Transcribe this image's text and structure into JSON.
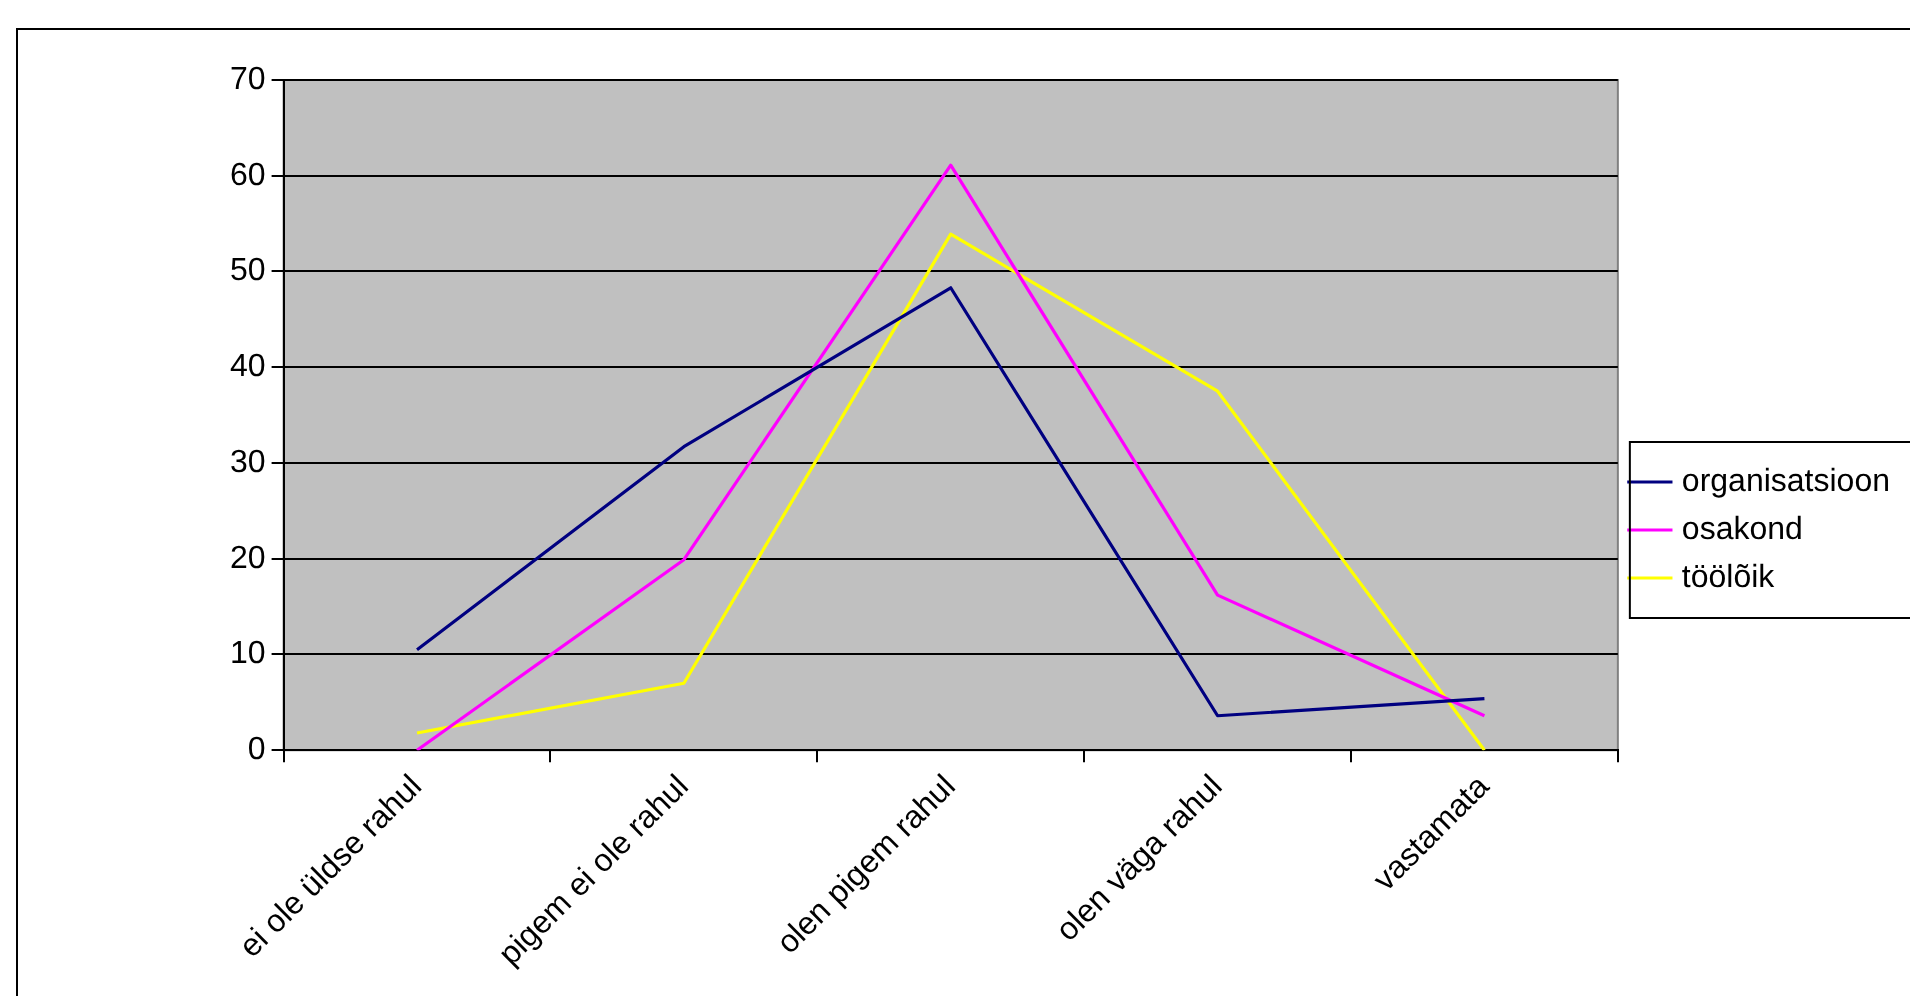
{
  "chart_data": {
    "type": "line",
    "categories": [
      "ei ole üldse rahul",
      "pigem ei ole rahul",
      "olen pigem rahul",
      "olen väga rahul",
      "vastamata"
    ],
    "series": [
      {
        "name": "organisatsioon",
        "color": "#000080",
        "values": [
          10.5,
          31.7,
          48.3,
          3.6,
          5.4
        ]
      },
      {
        "name": "osakond",
        "color": "#ff00ff",
        "values": [
          0,
          19.9,
          61.1,
          16.2,
          3.6
        ]
      },
      {
        "name": "töölõik",
        "color": "#ffff00",
        "values": [
          1.8,
          7,
          53.9,
          37.5,
          0
        ]
      }
    ],
    "ylim": [
      0,
      70
    ],
    "yticks": [
      0,
      10,
      20,
      30,
      40,
      50,
      60,
      70
    ],
    "grid": "y",
    "legend": "right",
    "marker": "none",
    "line_style": "solid"
  }
}
